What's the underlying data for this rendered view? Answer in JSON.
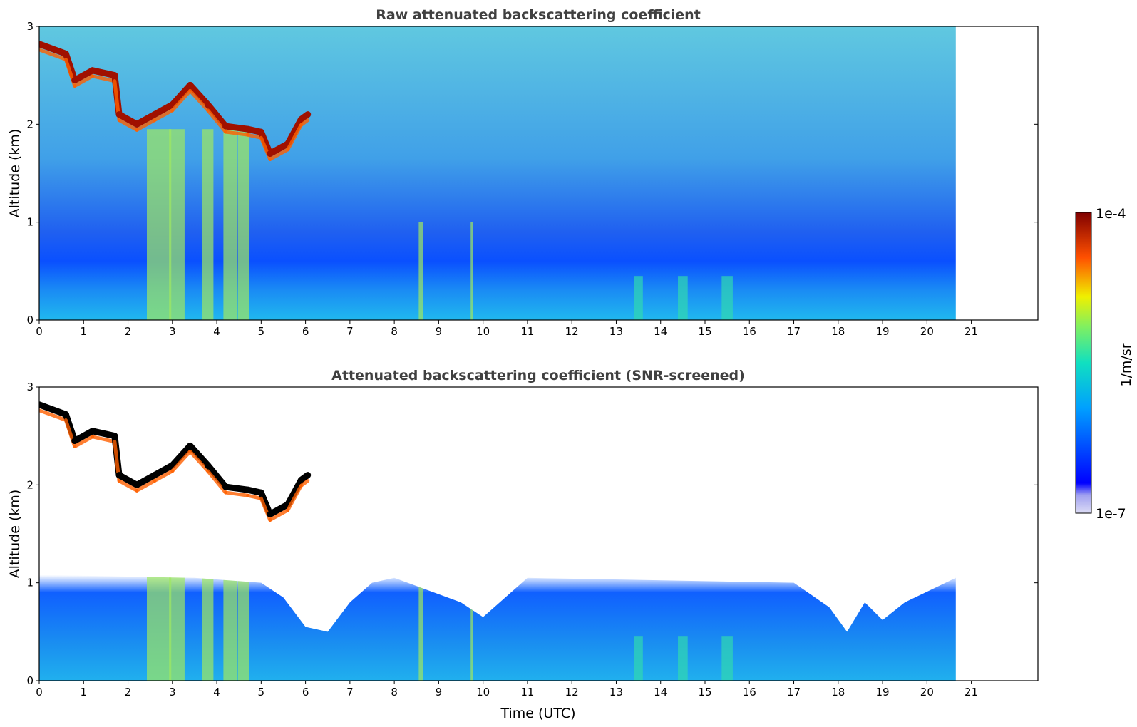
{
  "chart_data": [
    {
      "type": "heatmap",
      "title": "Raw attenuated backscattering coefficient",
      "xlabel": "",
      "ylabel": "Altitude (km)",
      "xlim": [
        0,
        22.5
      ],
      "ylim": [
        0,
        3
      ],
      "x_ticks": [
        0,
        1,
        2,
        3,
        4,
        5,
        6,
        7,
        8,
        9,
        10,
        11,
        12,
        13,
        14,
        15,
        16,
        17,
        18,
        19,
        20,
        21
      ],
      "y_ticks": [
        0,
        1,
        2,
        3
      ],
      "data_end_time": 20.65,
      "screened": false,
      "cloud_layer": [
        {
          "t": 0.0,
          "alt": 2.82
        },
        {
          "t": 0.6,
          "alt": 2.72
        },
        {
          "t": 0.8,
          "alt": 2.45
        },
        {
          "t": 1.2,
          "alt": 2.55
        },
        {
          "t": 1.7,
          "alt": 2.5
        },
        {
          "t": 1.8,
          "alt": 2.1
        },
        {
          "t": 2.2,
          "alt": 2.0
        },
        {
          "t": 2.6,
          "alt": 2.1
        },
        {
          "t": 3.0,
          "alt": 2.2
        },
        {
          "t": 3.4,
          "alt": 2.4
        },
        {
          "t": 3.8,
          "alt": 2.2
        },
        {
          "t": 4.2,
          "alt": 1.98
        },
        {
          "t": 4.7,
          "alt": 1.95
        },
        {
          "t": 5.0,
          "alt": 1.92
        },
        {
          "t": 5.2,
          "alt": 1.7
        },
        {
          "t": 5.6,
          "alt": 1.8
        },
        {
          "t": 5.9,
          "alt": 2.05
        },
        {
          "t": 6.05,
          "alt": 2.1
        }
      ]
    },
    {
      "type": "heatmap",
      "title": "Attenuated backscattering coefficient (SNR-screened)",
      "xlabel": "Time (UTC)",
      "ylabel": "Altitude (km)",
      "xlim": [
        0,
        22.5
      ],
      "ylim": [
        0,
        3
      ],
      "x_ticks": [
        0,
        1,
        2,
        3,
        4,
        5,
        6,
        7,
        8,
        9,
        10,
        11,
        12,
        13,
        14,
        15,
        16,
        17,
        18,
        19,
        20,
        21
      ],
      "y_ticks": [
        0,
        1,
        2,
        3
      ],
      "data_end_time": 20.65,
      "screened": true,
      "boundary_layer_top": [
        {
          "t": 0.0,
          "alt": 1.08
        },
        {
          "t": 3.5,
          "alt": 1.05
        },
        {
          "t": 5.0,
          "alt": 1.0
        },
        {
          "t": 5.5,
          "alt": 0.85
        },
        {
          "t": 6.0,
          "alt": 0.55
        },
        {
          "t": 6.5,
          "alt": 0.5
        },
        {
          "t": 7.0,
          "alt": 0.8
        },
        {
          "t": 7.5,
          "alt": 1.0
        },
        {
          "t": 8.0,
          "alt": 1.05
        },
        {
          "t": 9.5,
          "alt": 0.8
        },
        {
          "t": 10.0,
          "alt": 0.65
        },
        {
          "t": 11.0,
          "alt": 1.05
        },
        {
          "t": 17.0,
          "alt": 1.0
        },
        {
          "t": 17.8,
          "alt": 0.75
        },
        {
          "t": 18.2,
          "alt": 0.5
        },
        {
          "t": 18.6,
          "alt": 0.8
        },
        {
          "t": 19.0,
          "alt": 0.62
        },
        {
          "t": 19.5,
          "alt": 0.8
        },
        {
          "t": 20.65,
          "alt": 1.05
        }
      ]
    }
  ],
  "colorbar": {
    "label": "1/m/sr",
    "max_label": "1e-4",
    "min_label": "1e-7",
    "min": 1e-07,
    "max": 0.0001,
    "scale": "log",
    "colormap": "jet"
  }
}
